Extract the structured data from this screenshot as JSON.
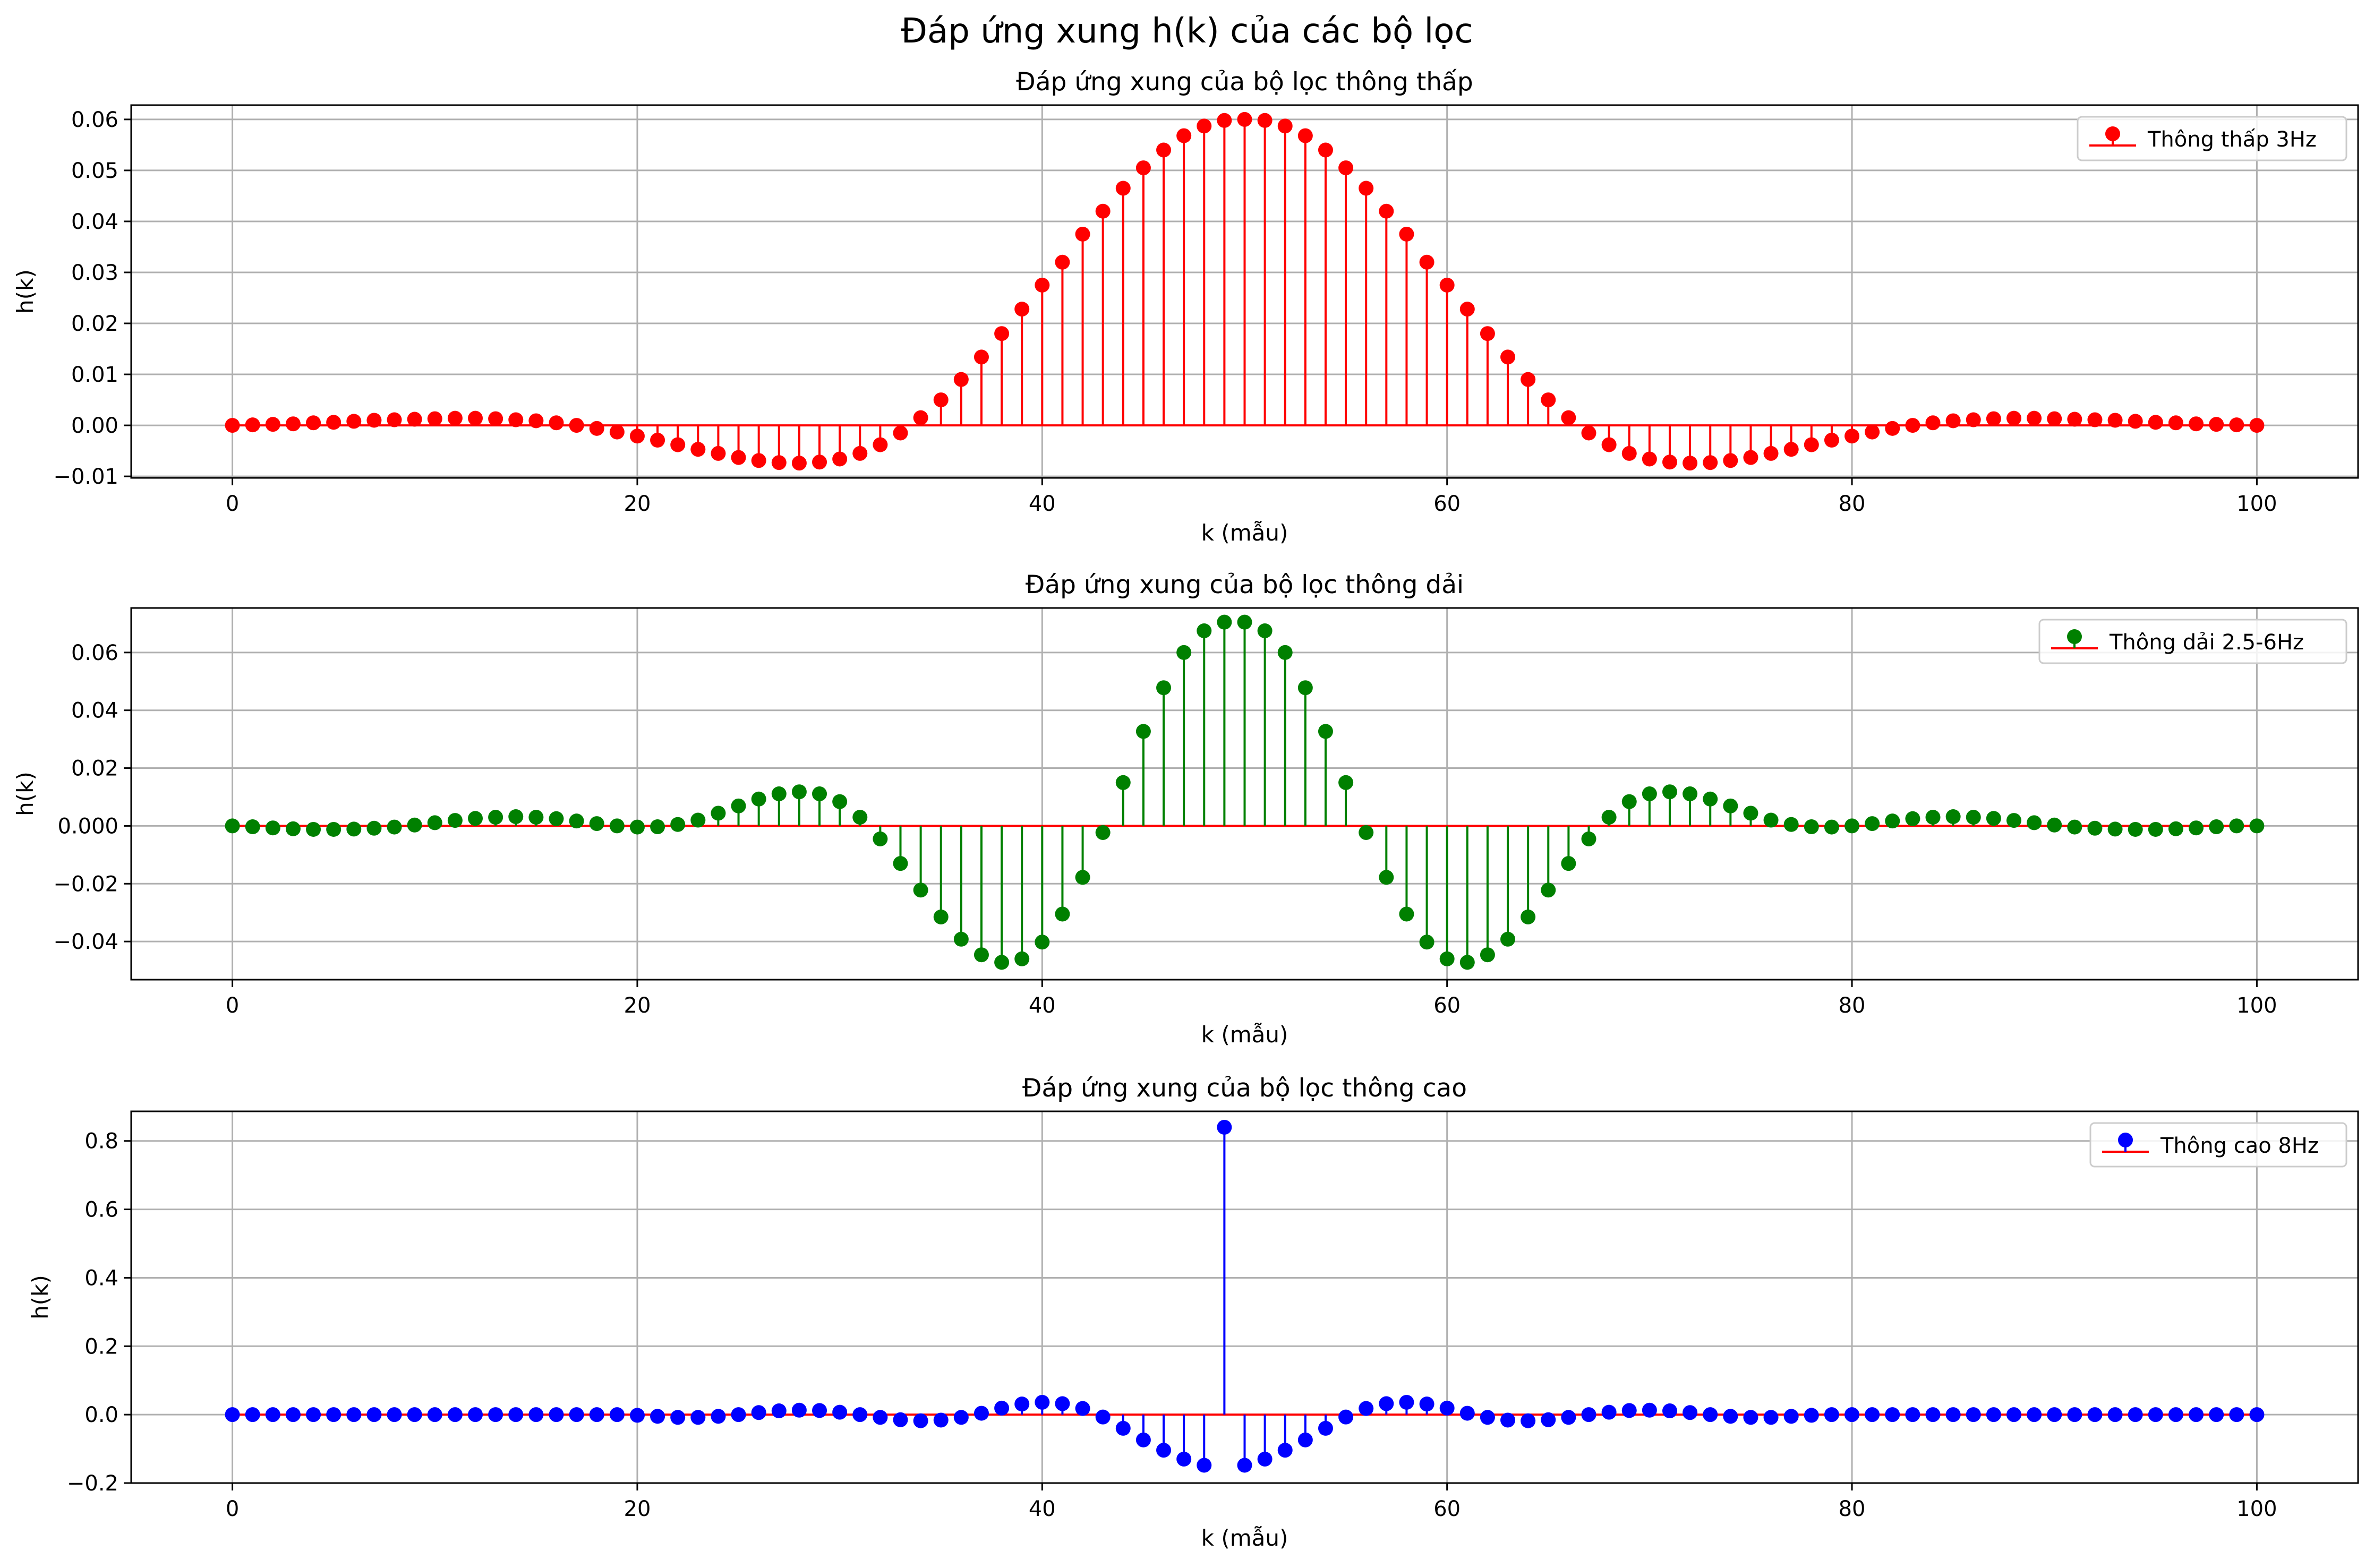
{
  "figure": {
    "suptitle": "Đáp ứng xung h(k) của các bộ lọc"
  },
  "chart_data": [
    {
      "type": "stem",
      "title": "Đáp ứng xung của bộ lọc thông thấp",
      "xlabel": "k (mẫu)",
      "ylabel": "h(k)",
      "legend": "Thông thấp 3Hz",
      "legend_position": "top-right",
      "grid": true,
      "color": "#ff0000",
      "baseline_color": "#ff0000",
      "xlim": [
        -5,
        105
      ],
      "ylim": [
        -0.0103,
        0.0628
      ],
      "xticks": [
        0,
        20,
        40,
        60,
        80,
        100
      ],
      "yticks": [
        -0.01,
        0.0,
        0.01,
        0.02,
        0.03,
        0.04,
        0.05,
        0.06
      ],
      "ytick_labels": [
        "−0.01",
        "0.00",
        "0.01",
        "0.02",
        "0.03",
        "0.04",
        "0.05",
        "0.06"
      ],
      "x_start": 0,
      "values": [
        0.0,
        0.0001,
        0.0002,
        0.0003,
        0.0005,
        0.0006,
        0.0008,
        0.001,
        0.0011,
        0.0012,
        0.0013,
        0.0014,
        0.0014,
        0.0013,
        0.0011,
        0.0009,
        0.0005,
        0.0,
        -0.0006,
        -0.0013,
        -0.0021,
        -0.0029,
        -0.0038,
        -0.0047,
        -0.0055,
        -0.0063,
        -0.0069,
        -0.0073,
        -0.0074,
        -0.0072,
        -0.0066,
        -0.0055,
        -0.0038,
        -0.0015,
        0.0015,
        0.005,
        0.009,
        0.0134,
        0.018,
        0.0228,
        0.0275,
        0.032,
        0.0375,
        0.042,
        0.0465,
        0.0505,
        0.054,
        0.0568,
        0.0587,
        0.0598,
        0.06,
        0.0598,
        0.0587,
        0.0568,
        0.054,
        0.0505,
        0.0465,
        0.042,
        0.0375,
        0.032,
        0.0275,
        0.0228,
        0.018,
        0.0134,
        0.009,
        0.005,
        0.0015,
        -0.0015,
        -0.0038,
        -0.0055,
        -0.0066,
        -0.0072,
        -0.0074,
        -0.0073,
        -0.0069,
        -0.0063,
        -0.0055,
        -0.0047,
        -0.0038,
        -0.0029,
        -0.0021,
        -0.0013,
        -0.0006,
        0.0,
        0.0005,
        0.0009,
        0.0011,
        0.0013,
        0.0014,
        0.0014,
        0.0013,
        0.0012,
        0.0011,
        0.001,
        0.0008,
        0.0006,
        0.0005,
        0.0003,
        0.0002,
        0.0001,
        0.0
      ]
    },
    {
      "type": "stem",
      "title": "Đáp ứng xung của bộ lọc thông dải",
      "xlabel": "k (mẫu)",
      "ylabel": "h(k)",
      "legend": "Thông dải 2.5-6Hz",
      "legend_position": "top-right",
      "grid": true,
      "color": "#008000",
      "baseline_color": "#ff0000",
      "xlim": [
        -5,
        105
      ],
      "ylim": [
        -0.0532,
        0.0754
      ],
      "xticks": [
        0,
        20,
        40,
        60,
        80,
        100
      ],
      "yticks": [
        -0.04,
        -0.02,
        0.0,
        0.02,
        0.04,
        0.06
      ],
      "ytick_labels": [
        "−0.04",
        "−0.02",
        "0.000",
        "0.02",
        "0.04",
        "0.06"
      ],
      "x_start": 0,
      "values": [
        0.0,
        -0.0003,
        -0.0007,
        -0.001,
        -0.0012,
        -0.0012,
        -0.0011,
        -0.0008,
        -0.0004,
        0.0003,
        0.0011,
        0.0019,
        0.0026,
        0.003,
        0.0032,
        0.003,
        0.0025,
        0.0017,
        0.0008,
        0.0,
        -0.0004,
        -0.0003,
        0.0005,
        0.002,
        0.0044,
        0.0069,
        0.0093,
        0.0111,
        0.0118,
        0.0111,
        0.0084,
        0.003,
        -0.0045,
        -0.013,
        -0.0222,
        -0.0315,
        -0.0392,
        -0.0446,
        -0.0472,
        -0.046,
        -0.0402,
        -0.0305,
        -0.0178,
        -0.0023,
        0.015,
        0.0327,
        0.0478,
        0.06,
        0.0675,
        0.0705,
        0.0705,
        0.0675,
        0.06,
        0.0478,
        0.0327,
        0.015,
        -0.0023,
        -0.0178,
        -0.0305,
        -0.0402,
        -0.046,
        -0.0472,
        -0.0446,
        -0.0392,
        -0.0315,
        -0.0222,
        -0.013,
        -0.0045,
        0.003,
        0.0084,
        0.0111,
        0.0118,
        0.0111,
        0.0093,
        0.0069,
        0.0044,
        0.002,
        0.0005,
        -0.0003,
        -0.0004,
        0.0,
        0.0008,
        0.0017,
        0.0025,
        0.003,
        0.0032,
        0.003,
        0.0026,
        0.0019,
        0.0011,
        0.0003,
        -0.0004,
        -0.0008,
        -0.0011,
        -0.0012,
        -0.0012,
        -0.001,
        -0.0007,
        -0.0003,
        0.0,
        0.0
      ]
    },
    {
      "type": "stem",
      "title": "Đáp ứng xung của bộ lọc thông cao",
      "xlabel": "k (mẫu)",
      "ylabel": "h(k)",
      "legend": "Thông cao 8Hz",
      "legend_position": "top-right",
      "grid": true,
      "color": "#0000ff",
      "baseline_color": "#ff0000",
      "xlim": [
        -5,
        105
      ],
      "ylim": [
        -0.2,
        0.8865
      ],
      "xticks": [
        0,
        20,
        40,
        60,
        80,
        100
      ],
      "yticks": [
        -0.2,
        0.0,
        0.2,
        0.4,
        0.6,
        0.8
      ],
      "ytick_labels": [
        "−0.2",
        "0.0",
        "0.2",
        "0.4",
        "0.6",
        "0.8"
      ],
      "x_start": 0,
      "values": [
        0.0,
        0.0,
        0.0,
        0.0,
        0.0,
        0.0,
        0.0,
        0.0,
        0.0,
        0.0,
        0.0,
        0.0,
        0.0,
        0.0,
        0.0,
        0.0,
        0.0,
        0.0,
        0.0,
        0.0,
        -0.002,
        -0.005,
        -0.008,
        -0.008,
        -0.005,
        0.0,
        0.006,
        0.011,
        0.013,
        0.012,
        0.007,
        0.0,
        -0.008,
        -0.015,
        -0.018,
        -0.016,
        -0.008,
        0.004,
        0.019,
        0.031,
        0.036,
        0.032,
        0.018,
        -0.007,
        -0.04,
        -0.074,
        -0.104,
        -0.13,
        -0.148,
        0.84,
        -0.148,
        -0.13,
        -0.104,
        -0.074,
        -0.04,
        -0.007,
        0.018,
        0.032,
        0.036,
        0.031,
        0.019,
        0.004,
        -0.008,
        -0.016,
        -0.018,
        -0.015,
        -0.008,
        0.0,
        0.007,
        0.012,
        0.013,
        0.011,
        0.006,
        0.0,
        -0.005,
        -0.008,
        -0.008,
        -0.005,
        -0.002,
        0.0,
        0.0,
        0.0,
        0.0,
        0.0,
        0.0,
        0.0,
        0.0,
        0.0,
        0.0,
        0.0,
        0.0,
        0.0,
        0.0,
        0.0,
        0.0,
        0.0,
        0.0,
        0.0,
        0.0,
        0.0,
        0.0
      ]
    }
  ]
}
